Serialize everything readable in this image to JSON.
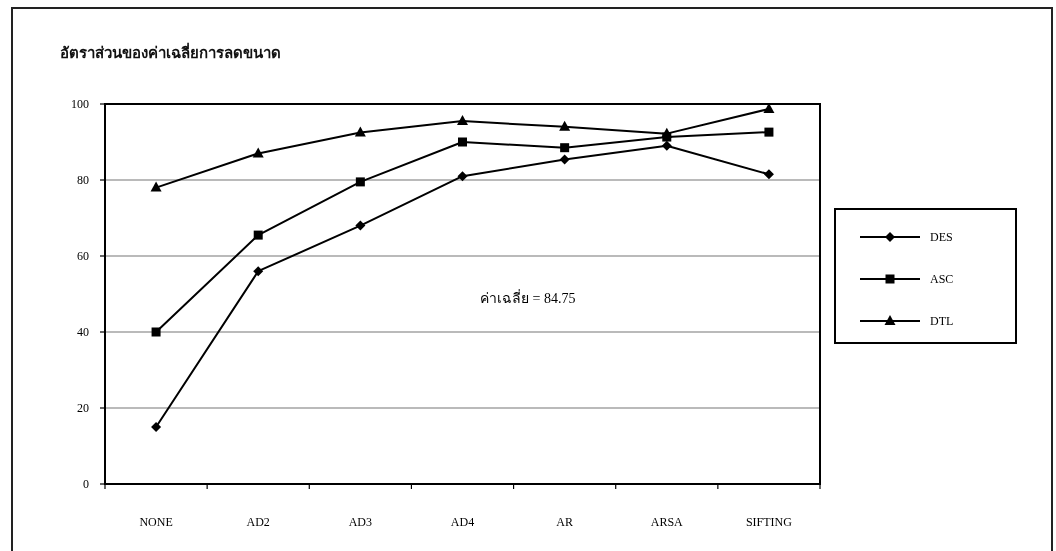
{
  "chart_data": {
    "type": "line",
    "title": "อัตราส่วนของค่าเฉลี่ยการลดขนาด",
    "categories": [
      "NONE",
      "AD2",
      "AD3",
      "AD4",
      "AR",
      "ARSA",
      "SIFTING"
    ],
    "series": [
      {
        "name": "DES",
        "color": "#000000",
        "marker": "diamond",
        "values": [
          15,
          56,
          68,
          81,
          85.4,
          89,
          81.5
        ]
      },
      {
        "name": "ASC",
        "color": "#000000",
        "marker": "square",
        "values": [
          40,
          65.5,
          79.5,
          90,
          88.5,
          91.3,
          92.6
        ]
      },
      {
        "name": "DTL",
        "color": "#000000",
        "marker": "triangle",
        "values": [
          78,
          87,
          92.5,
          95.5,
          94,
          92.2,
          98.7
        ]
      }
    ],
    "ylim": [
      0,
      100
    ],
    "yticks": [
      0,
      20,
      40,
      60,
      80,
      100
    ],
    "grid": "y",
    "legend": "right",
    "line_style": "solid",
    "annotations": [
      "ค่าเฉลี่ย = 84.75"
    ]
  }
}
